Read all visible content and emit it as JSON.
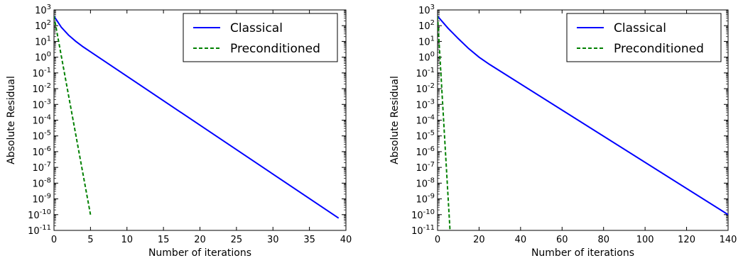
{
  "chart_data": [
    {
      "type": "line",
      "xlabel": "Number of iterations",
      "ylabel": "Absolute Residual",
      "xlim": [
        0,
        40
      ],
      "xticks": [
        0,
        5,
        10,
        15,
        20,
        25,
        30,
        35,
        40
      ],
      "yscale": "log",
      "ylim_exp": [
        -11,
        3
      ],
      "yticks_exp": [
        -11,
        -10,
        -9,
        -8,
        -7,
        -6,
        -5,
        -4,
        -3,
        -2,
        -1,
        0,
        1,
        2,
        3
      ],
      "ytick_base": "10",
      "grid": false,
      "legend_position": "top-right",
      "series": [
        {
          "name": "Classical",
          "color": "#0000ff",
          "linestyle": "solid",
          "points": [
            [
              0,
              400
            ],
            [
              1,
              80
            ],
            [
              2,
              25
            ],
            [
              3,
              10
            ],
            [
              4,
              4.5
            ],
            [
              5,
              2.2
            ],
            [
              39,
              6e-11
            ]
          ]
        },
        {
          "name": "Preconditioned",
          "color": "#008000",
          "linestyle": "dashed",
          "points": [
            [
              0,
              400
            ],
            [
              5,
              1e-10
            ]
          ]
        }
      ]
    },
    {
      "type": "line",
      "xlabel": "Number of iterations",
      "ylabel": "Absolute Residual",
      "xlim": [
        0,
        140
      ],
      "xticks": [
        0,
        20,
        40,
        60,
        80,
        100,
        120,
        140
      ],
      "yscale": "log",
      "ylim_exp": [
        -11,
        3
      ],
      "yticks_exp": [
        -11,
        -10,
        -9,
        -8,
        -7,
        -6,
        -5,
        -4,
        -3,
        -2,
        -1,
        0,
        1,
        2,
        3
      ],
      "ytick_base": "10",
      "grid": false,
      "legend_position": "top-right",
      "series": [
        {
          "name": "Classical",
          "color": "#0000ff",
          "linestyle": "solid",
          "points": [
            [
              0,
              400
            ],
            [
              5,
              70
            ],
            [
              10,
              15
            ],
            [
              15,
              3.5
            ],
            [
              20,
              1
            ],
            [
              25,
              0.35
            ],
            [
              140,
              1e-10
            ]
          ]
        },
        {
          "name": "Preconditioned",
          "color": "#008000",
          "linestyle": "dashed",
          "points": [
            [
              0,
              400
            ],
            [
              6,
              1e-11
            ]
          ]
        }
      ]
    }
  ]
}
